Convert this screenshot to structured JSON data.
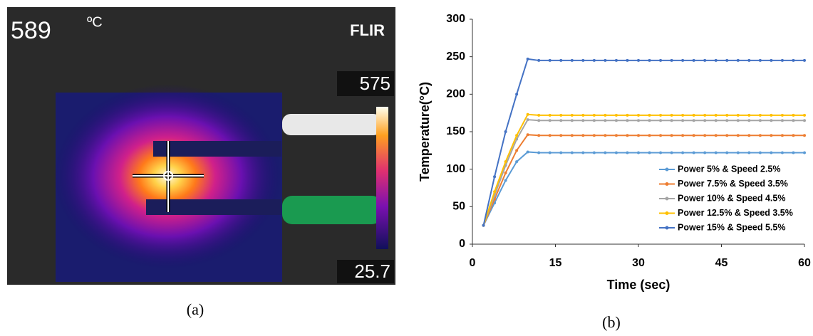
{
  "panel_a": {
    "reading": "589",
    "unit": "ºC",
    "brand": "FLIR",
    "scale_max": "575",
    "scale_min": "25.7",
    "caption": "(a)"
  },
  "chart_data": {
    "type": "line",
    "caption": "(b)",
    "x_label": "Time (sec)",
    "y_label": "Temperature(°C)",
    "x": [
      2,
      4,
      6,
      8,
      10,
      12,
      14,
      16,
      18,
      20,
      22,
      24,
      26,
      28,
      30,
      32,
      34,
      36,
      38,
      40,
      42,
      44,
      46,
      48,
      50,
      52,
      54,
      56,
      58,
      60
    ],
    "series": [
      {
        "name": "Power 5% & Speed 2.5%",
        "color": "#5b9bd5",
        "values": [
          25,
          55,
          85,
          110,
          123,
          122,
          122,
          122,
          122,
          122,
          122,
          122,
          122,
          122,
          122,
          122,
          122,
          122,
          122,
          122,
          122,
          122,
          122,
          122,
          122,
          122,
          122,
          122,
          122,
          122
        ]
      },
      {
        "name": "Power 7.5% & Speed 3.5%",
        "color": "#ed7d31",
        "values": [
          25,
          60,
          95,
          125,
          146,
          145,
          145,
          145,
          145,
          145,
          145,
          145,
          145,
          145,
          145,
          145,
          145,
          145,
          145,
          145,
          145,
          145,
          145,
          145,
          145,
          145,
          145,
          145,
          145,
          145
        ]
      },
      {
        "name": "Power 10% & Speed 4.5%",
        "color": "#a5a5a5",
        "values": [
          25,
          65,
          105,
          140,
          166,
          165,
          165,
          165,
          165,
          165,
          165,
          165,
          165,
          165,
          165,
          165,
          165,
          165,
          165,
          165,
          165,
          165,
          165,
          165,
          165,
          165,
          165,
          165,
          165,
          165
        ]
      },
      {
        "name": "Power 12.5% & Speed 3.5%",
        "color": "#ffc000",
        "values": [
          25,
          70,
          110,
          145,
          173,
          172,
          172,
          172,
          172,
          172,
          172,
          172,
          172,
          172,
          172,
          172,
          172,
          172,
          172,
          172,
          172,
          172,
          172,
          172,
          172,
          172,
          172,
          172,
          172,
          172
        ]
      },
      {
        "name": "Power 15% & Speed 5.5%",
        "color": "#4472c4",
        "values": [
          25,
          90,
          150,
          200,
          247,
          245,
          245,
          245,
          245,
          245,
          245,
          245,
          245,
          245,
          245,
          245,
          245,
          245,
          245,
          245,
          245,
          245,
          245,
          245,
          245,
          245,
          245,
          245,
          245,
          245
        ]
      }
    ],
    "xlim": [
      0,
      60
    ],
    "xticks": [
      0,
      15,
      30,
      45,
      60
    ],
    "ylim": [
      0,
      300
    ],
    "yticks": [
      0,
      50,
      100,
      150,
      200,
      250,
      300
    ],
    "legend": "lower-right"
  }
}
